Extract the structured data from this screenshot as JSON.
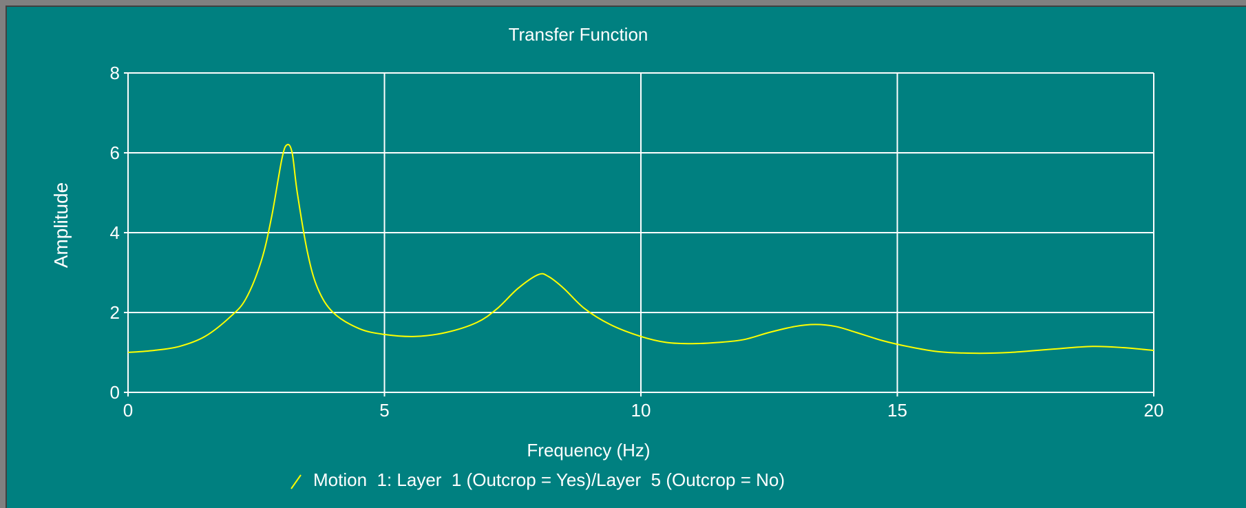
{
  "colors": {
    "background": "#008080",
    "frame": "#808080",
    "grid": "#ffffff",
    "text": "#ffffff",
    "series": "#ffff00"
  },
  "chart_data": {
    "type": "line",
    "title": "Transfer Function",
    "xlabel": "Frequency (Hz)",
    "ylabel": "Amplitude",
    "xlim": [
      0,
      20
    ],
    "ylim": [
      0,
      8
    ],
    "xticks": [
      "0",
      "5",
      "10",
      "15",
      "20"
    ],
    "yticks": [
      "0",
      "2",
      "4",
      "6",
      "8"
    ],
    "grid": true,
    "legend_position": "bottom-center",
    "series": [
      {
        "name": "Motion  1: Layer  1 (Outcrop = Yes)/Layer  5 (Outcrop = No)",
        "color": "#ffff00",
        "x": [
          0,
          0.5,
          1.0,
          1.5,
          2.0,
          2.3,
          2.6,
          2.8,
          3.0,
          3.1,
          3.2,
          3.3,
          3.5,
          3.7,
          4.0,
          4.5,
          5.0,
          5.6,
          6.2,
          6.8,
          7.2,
          7.6,
          8.0,
          8.2,
          8.5,
          8.9,
          9.4,
          10.0,
          10.5,
          11.0,
          11.5,
          12.0,
          12.5,
          13.0,
          13.4,
          13.8,
          14.2,
          14.7,
          15.2,
          15.8,
          16.5,
          17.2,
          18.0,
          18.8,
          19.4,
          20.0
        ],
        "y": [
          1.0,
          1.05,
          1.15,
          1.4,
          1.9,
          2.35,
          3.3,
          4.4,
          5.85,
          6.2,
          6.0,
          5.0,
          3.5,
          2.6,
          2.0,
          1.6,
          1.45,
          1.4,
          1.5,
          1.75,
          2.1,
          2.6,
          2.95,
          2.9,
          2.6,
          2.1,
          1.7,
          1.4,
          1.25,
          1.22,
          1.25,
          1.32,
          1.5,
          1.65,
          1.7,
          1.65,
          1.5,
          1.3,
          1.15,
          1.02,
          0.98,
          1.0,
          1.08,
          1.15,
          1.12,
          1.05
        ]
      }
    ]
  }
}
